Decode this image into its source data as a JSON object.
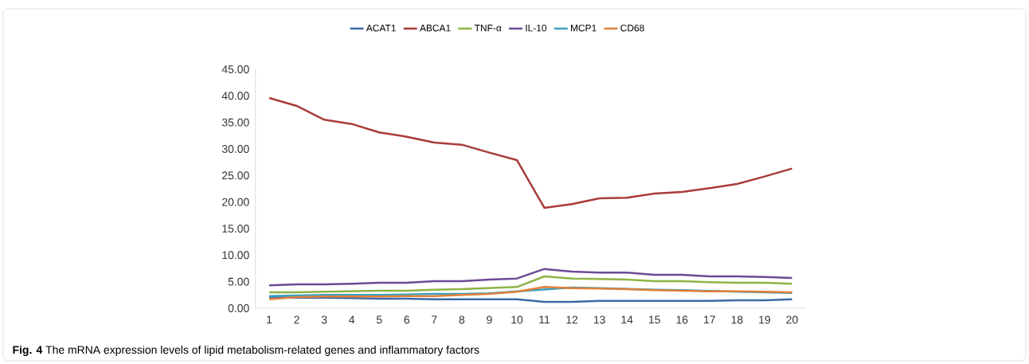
{
  "chart_data": {
    "type": "line",
    "categories": [
      "1",
      "2",
      "3",
      "4",
      "5",
      "6",
      "7",
      "8",
      "9",
      "10",
      "11",
      "12",
      "13",
      "14",
      "15",
      "16",
      "17",
      "18",
      "19",
      "20"
    ],
    "series": [
      {
        "name": "ACAT1",
        "color": "#3a6aa8",
        "values": [
          2.1,
          2.0,
          2.0,
          1.9,
          1.8,
          1.8,
          1.7,
          1.7,
          1.7,
          1.7,
          1.2,
          1.2,
          1.4,
          1.4,
          1.4,
          1.4,
          1.4,
          1.5,
          1.5,
          1.7
        ]
      },
      {
        "name": "ABCA1",
        "color": "#a83c3a",
        "values": [
          39.6,
          38.1,
          35.5,
          34.7,
          33.1,
          32.3,
          31.2,
          30.8,
          29.3,
          27.9,
          18.9,
          19.6,
          20.7,
          20.8,
          21.6,
          21.9,
          22.6,
          23.4,
          24.8,
          26.3
        ]
      },
      {
        "name": "TNF-α",
        "color": "#8db345",
        "values": [
          3.0,
          3.0,
          3.1,
          3.2,
          3.3,
          3.3,
          3.5,
          3.6,
          3.8,
          4.0,
          6.0,
          5.6,
          5.5,
          5.4,
          5.1,
          5.1,
          4.9,
          4.8,
          4.8,
          4.6
        ]
      },
      {
        "name": "IL-10",
        "color": "#6e4a96",
        "values": [
          4.3,
          4.5,
          4.5,
          4.6,
          4.8,
          4.8,
          5.1,
          5.1,
          5.4,
          5.6,
          7.4,
          6.9,
          6.7,
          6.7,
          6.3,
          6.3,
          6.0,
          6.0,
          5.9,
          5.7
        ]
      },
      {
        "name": "MCP1",
        "color": "#3aa0c0",
        "values": [
          2.3,
          2.4,
          2.5,
          2.5,
          2.5,
          2.6,
          2.7,
          2.7,
          2.8,
          null,
          null,
          3.9,
          3.8,
          null,
          3.5,
          3.4,
          null,
          3.1,
          3.0,
          2.9
        ]
      },
      {
        "name": "CD68",
        "color": "#e0813a",
        "values": [
          1.7,
          2.1,
          2.2,
          2.2,
          2.2,
          2.3,
          2.3,
          2.5,
          2.7,
          3.1,
          4.0,
          3.8,
          3.7,
          3.6,
          3.4,
          3.3,
          3.2,
          3.2,
          3.1,
          3.0
        ]
      }
    ],
    "ylim": [
      0,
      45
    ],
    "yticks": [
      {
        "value": 0,
        "label": "0.00"
      },
      {
        "value": 5,
        "label": "5.00"
      },
      {
        "value": 10,
        "label": "10.00"
      },
      {
        "value": 15,
        "label": "15.00"
      },
      {
        "value": 20,
        "label": "20.00"
      },
      {
        "value": 25,
        "label": "25.00"
      },
      {
        "value": 30,
        "label": "30.00"
      },
      {
        "value": 35,
        "label": "35.00"
      },
      {
        "value": 40,
        "label": "40.00"
      },
      {
        "value": 45,
        "label": "45.00"
      }
    ],
    "grid": false,
    "legend": "top",
    "marker": "none",
    "line_style": "solid",
    "annotations": [
      "**Fig. 4** The mRNA expression levels of lipid metabolism-related genes and inflammatory factors"
    ]
  }
}
